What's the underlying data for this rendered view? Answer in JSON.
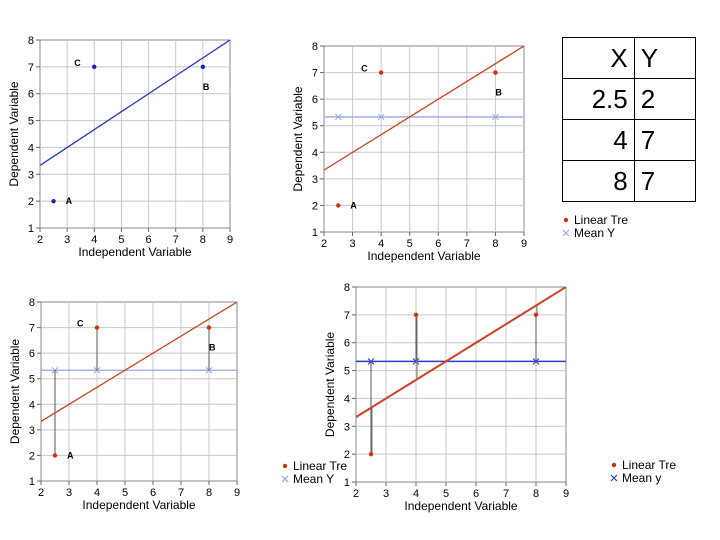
{
  "chart_data": [
    {
      "type": "scatter",
      "variant": "points-and-line",
      "xlabel": "Independent Variable",
      "ylabel": "Dependent Variable",
      "xlim": [
        2,
        9
      ],
      "ylim": [
        1,
        8
      ],
      "xticks": [
        2,
        3,
        4,
        5,
        6,
        7,
        8,
        9
      ],
      "yticks": [
        1,
        2,
        3,
        4,
        5,
        6,
        7,
        8
      ],
      "points": [
        {
          "label": "A",
          "x": 2.5,
          "y": 2
        },
        {
          "label": "C",
          "x": 4,
          "y": 7
        },
        {
          "label": "B",
          "x": 8,
          "y": 7
        }
      ],
      "trend_line": {
        "from": [
          2,
          3.33
        ],
        "to": [
          9,
          8.0
        ]
      },
      "point_color": "#1a22b8",
      "line_color": "#2638c8"
    },
    {
      "type": "scatter",
      "variant": "with-mean",
      "xlabel": "Independent Variable",
      "ylabel": "Dependent Variable",
      "xlim": [
        2,
        9
      ],
      "ylim": [
        1,
        8
      ],
      "xticks": [
        2,
        3,
        4,
        5,
        6,
        7,
        8,
        9
      ],
      "yticks": [
        1,
        2,
        3,
        4,
        5,
        6,
        7,
        8
      ],
      "points": [
        {
          "label": "A",
          "x": 2.5,
          "y": 2
        },
        {
          "label": "C",
          "x": 4,
          "y": 7
        },
        {
          "label": "B",
          "x": 8,
          "y": 7
        }
      ],
      "trend_line": {
        "from": [
          2,
          3.33
        ],
        "to": [
          9,
          8.0
        ]
      },
      "mean_y": 5.33,
      "mean_markers_x": [
        2.5,
        4,
        8
      ],
      "point_color": "#cc3311",
      "line_color": "#cc4422",
      "mean_color": "#99a6e6",
      "legend": [
        "Linear Tre",
        "Mean Y"
      ]
    },
    {
      "type": "scatter",
      "variant": "residuals-to-mean",
      "xlabel": "Independent Variable",
      "ylabel": "Dependent Variable",
      "xlim": [
        2,
        9
      ],
      "ylim": [
        1,
        8
      ],
      "xticks": [
        2,
        3,
        4,
        5,
        6,
        7,
        8,
        9
      ],
      "yticks": [
        1,
        2,
        3,
        4,
        5,
        6,
        7,
        8
      ],
      "points": [
        {
          "label": "A",
          "x": 2.5,
          "y": 2
        },
        {
          "label": "C",
          "x": 4,
          "y": 7
        },
        {
          "label": "B",
          "x": 8,
          "y": 7
        }
      ],
      "trend_line": {
        "from": [
          2,
          3.33
        ],
        "to": [
          9,
          8.0
        ]
      },
      "mean_y": 5.33,
      "mean_markers_x": [
        2.5,
        4,
        8
      ],
      "point_color": "#cc3311",
      "line_color": "#cc4422",
      "mean_color": "#99a6e6",
      "legend": [
        "Linear Tre",
        "Mean Y"
      ]
    },
    {
      "type": "scatter",
      "variant": "residuals-to-line",
      "xlabel": "Independent Variable",
      "ylabel": "Dependent Variable",
      "xlim": [
        2,
        9
      ],
      "ylim": [
        1,
        8
      ],
      "xticks": [
        2,
        3,
        4,
        5,
        6,
        7,
        8,
        9
      ],
      "yticks": [
        1,
        2,
        3,
        4,
        5,
        6,
        7,
        8
      ],
      "points": [
        {
          "label": "",
          "x": 2.5,
          "y": 2
        },
        {
          "label": "",
          "x": 4,
          "y": 7
        },
        {
          "label": "",
          "x": 8,
          "y": 7
        }
      ],
      "trend_line": {
        "from": [
          2,
          3.33
        ],
        "to": [
          9,
          8.0
        ]
      },
      "mean_y": 5.33,
      "mean_markers_x": [
        2.5,
        4,
        8
      ],
      "point_color": "#cc3311",
      "line_color": "#cc4422",
      "mean_color": "#2a3ad0",
      "legend": [
        "Linear Tre",
        "Mean y"
      ]
    }
  ],
  "data_table": {
    "headers": [
      "X",
      "Y"
    ],
    "rows": [
      [
        "2.5",
        "2"
      ],
      [
        "4",
        "7"
      ],
      [
        "8",
        "7"
      ]
    ]
  }
}
